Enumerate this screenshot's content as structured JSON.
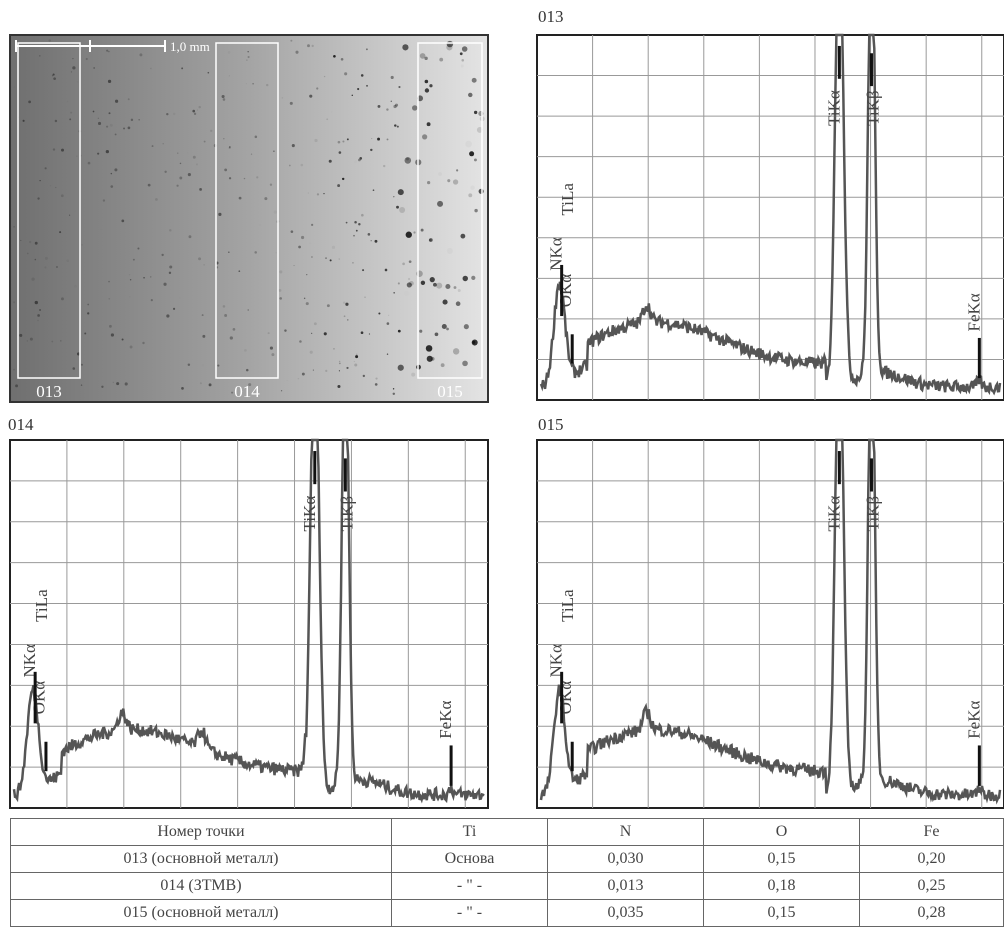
{
  "micrograph": {
    "scale_label": "1,0 mm",
    "regions": [
      "013",
      "014",
      "015"
    ]
  },
  "spectra": [
    {
      "label": "013",
      "peaks": [
        "TiLa",
        "NKα",
        "OKα",
        "TiKα",
        "TiKβ",
        "FeKα"
      ]
    },
    {
      "label": "014",
      "peaks": [
        "TiLa",
        "NKα",
        "OKα",
        "TiKα",
        "TiKβ",
        "FeKα"
      ]
    },
    {
      "label": "015",
      "peaks": [
        "TiLa",
        "NKα",
        "OKα",
        "TiKα",
        "TiKβ",
        "FeKα"
      ]
    }
  ],
  "table": {
    "header": [
      "Номер точки",
      "Ti",
      "N",
      "O",
      "Fe"
    ],
    "rows": [
      [
        "013 (основной металл)",
        "Основа",
        "0,030",
        "0,15",
        "0,20"
      ],
      [
        "014 (ЗТМВ)",
        "- \" -",
        "0,013",
        "0,18",
        "0,25"
      ],
      [
        "015 (основной металл)",
        "- \" -",
        "0,035",
        "0,15",
        "0,28"
      ]
    ]
  }
}
